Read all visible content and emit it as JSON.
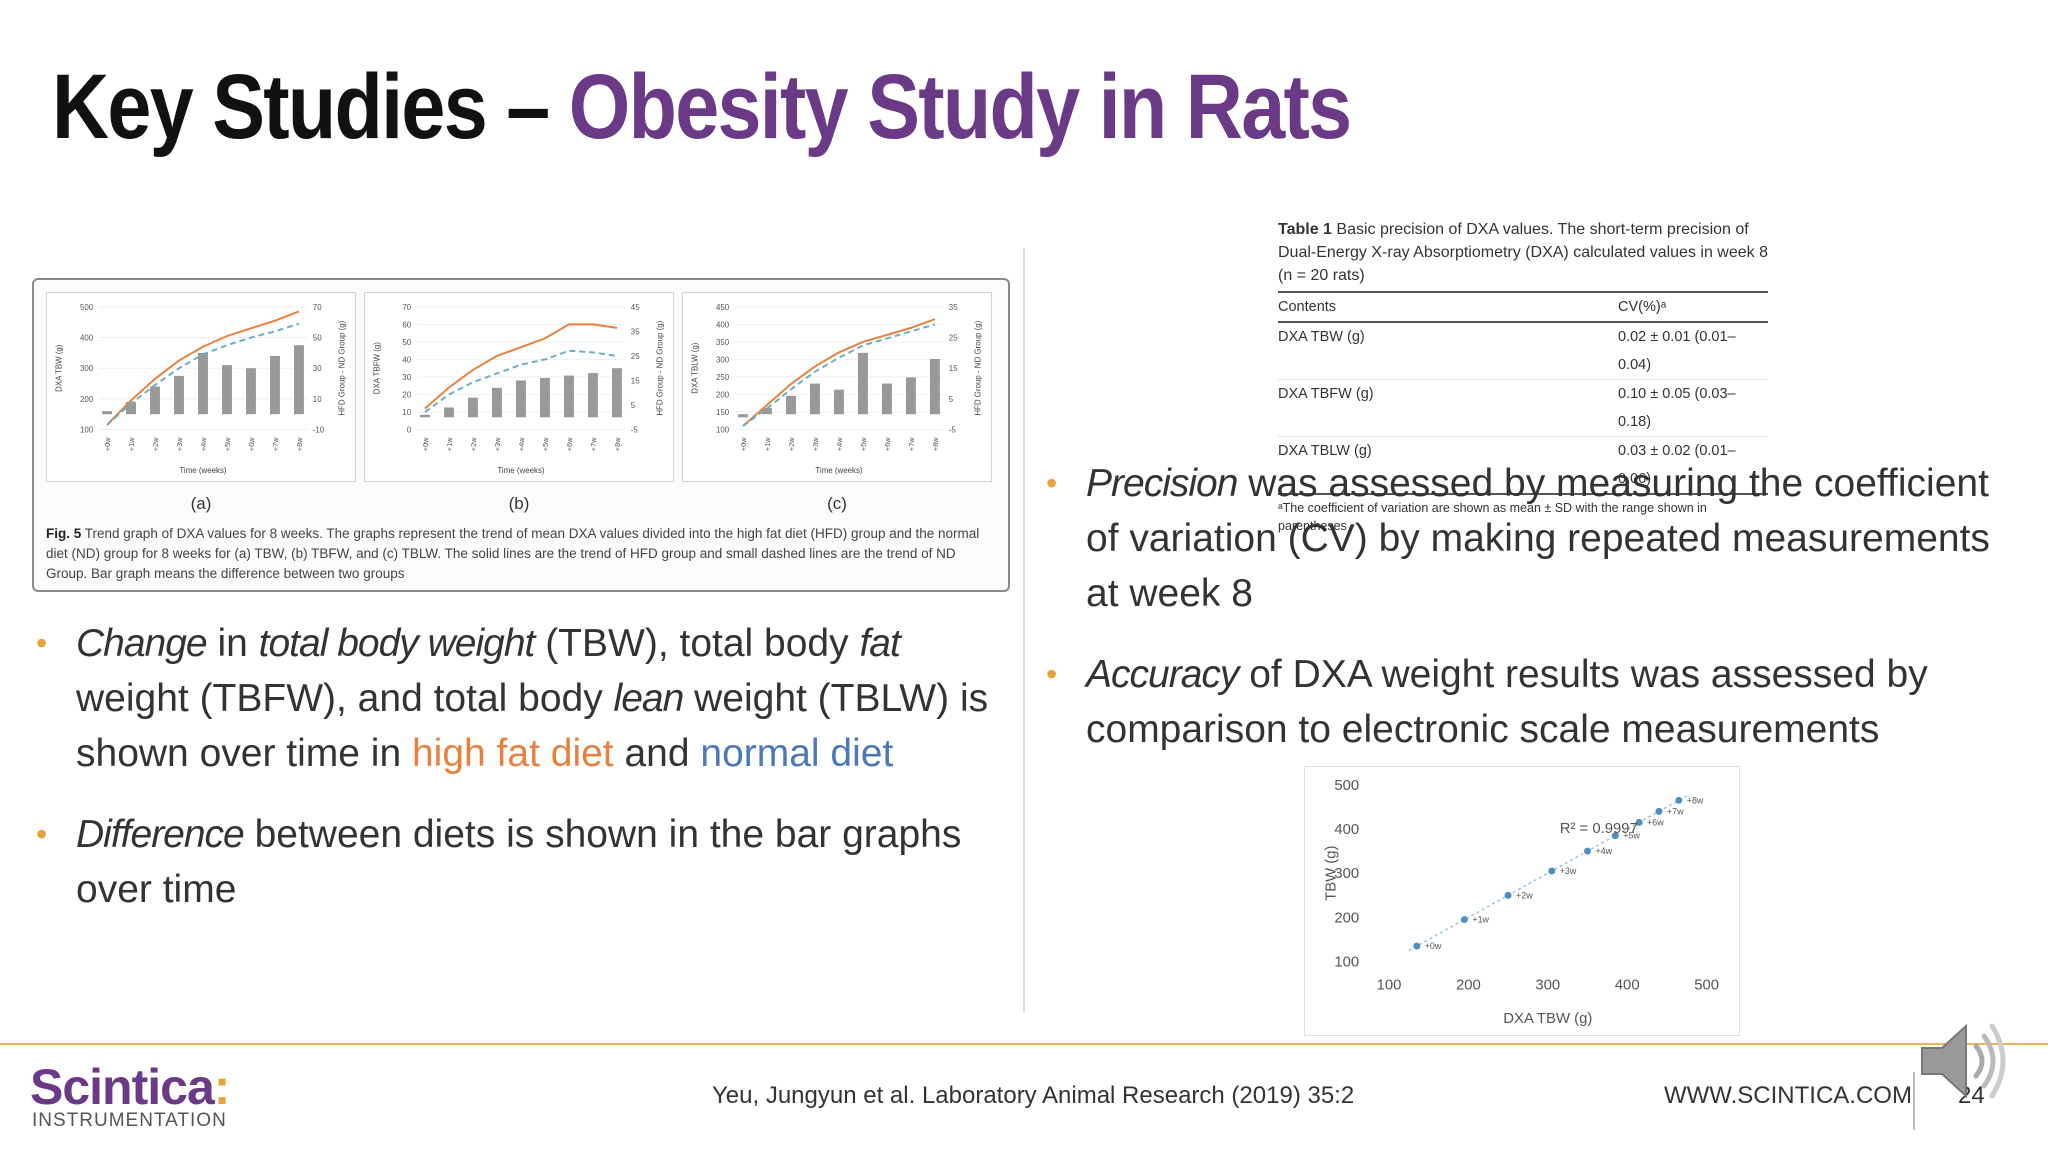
{
  "title": {
    "part1": "Key Studies – ",
    "part2": "Obesity Study in Rats"
  },
  "figure": {
    "graphs": [
      {
        "letter": "(a)",
        "y_left_label": "DXA TBW (g)",
        "y_right_label": "HFD Group - ND Group (g)",
        "y_left_ticks": [
          "500",
          "400",
          "300",
          "200",
          "100"
        ],
        "y_right_ticks": [
          "70",
          "50",
          "30",
          "10",
          "-10"
        ],
        "x_label": "Time (weeks)"
      },
      {
        "letter": "(b)",
        "y_left_label": "DXA TBFW (g)",
        "y_right_label": "HFD Group - ND Group (g)",
        "y_left_ticks": [
          "70",
          "60",
          "50",
          "40",
          "30",
          "20",
          "10",
          "0"
        ],
        "y_right_ticks": [
          "45",
          "35",
          "25",
          "15",
          "5",
          "-5"
        ],
        "x_label": "Time (weeks)"
      },
      {
        "letter": "(c)",
        "y_left_label": "DXA TBLW (g)",
        "y_right_label": "HFD Group - ND Group (g)",
        "y_left_ticks": [
          "450",
          "400",
          "350",
          "300",
          "250",
          "200",
          "150",
          "100"
        ],
        "y_right_ticks": [
          "35",
          "25",
          "15",
          "5",
          "-5"
        ],
        "x_label": "Time (weeks)"
      }
    ],
    "x_ticks": [
      "+0w",
      "+1w",
      "+2w",
      "+3w",
      "+4w",
      "+5w",
      "+6w",
      "+7w",
      "+8w"
    ],
    "caption": {
      "fig_label": "Fig. 5",
      "text": "Trend graph of DXA values for 8 weeks. The graphs represent the trend of mean DXA values divided into the high fat diet (HFD) group and the normal diet (ND) group for 8 weeks for (a) TBW, (b) TBFW, and (c) TBLW. The solid lines are the trend of HFD group and small dashed lines are the trend of ND Group. Bar graph means the difference between two groups"
    }
  },
  "chart_data": [
    {
      "type": "line",
      "title": "(a)",
      "x": [
        "+0w",
        "+1w",
        "+2w",
        "+3w",
        "+4w",
        "+5w",
        "+6w",
        "+7w",
        "+8w"
      ],
      "ylabel": "DXA TBW (g)",
      "ylim": [
        100,
        500
      ],
      "y2label": "HFD Group - ND Group (g)",
      "y2lim": [
        -10,
        70
      ],
      "series": [
        {
          "values": [
            115,
            195,
            265,
            325,
            370,
            405,
            430,
            455,
            485
          ],
          "style": "solid",
          "color": "#e8813f"
        },
        {
          "values": [
            115,
            185,
            245,
            300,
            345,
            375,
            400,
            420,
            445
          ],
          "style": "dashed",
          "color": "#6aaec4"
        },
        {
          "values": [
            2,
            8,
            18,
            25,
            40,
            32,
            30,
            38,
            45
          ],
          "style": "bar",
          "color": "#999999",
          "axis": "right"
        }
      ]
    },
    {
      "type": "line",
      "title": "(b)",
      "x": [
        "+0w",
        "+1w",
        "+2w",
        "+3w",
        "+4w",
        "+5w",
        "+6w",
        "+7w",
        "+8w"
      ],
      "ylabel": "DXA TBFW (g)",
      "ylim": [
        0,
        70
      ],
      "y2label": "HFD Group - ND Group (g)",
      "y2lim": [
        -5,
        45
      ],
      "series": [
        {
          "values": [
            12,
            24,
            34,
            42,
            47,
            52,
            60,
            60,
            58
          ],
          "style": "solid",
          "color": "#e8813f"
        },
        {
          "values": [
            10,
            20,
            27,
            32,
            37,
            40,
            45,
            44,
            42
          ],
          "style": "dashed",
          "color": "#6aaec4"
        },
        {
          "values": [
            1,
            4,
            8,
            12,
            15,
            16,
            17,
            18,
            20
          ],
          "style": "bar",
          "color": "#999999",
          "axis": "right"
        }
      ]
    },
    {
      "type": "line",
      "title": "(c)",
      "x": [
        "+0w",
        "+1w",
        "+2w",
        "+3w",
        "+4w",
        "+5w",
        "+6w",
        "+7w",
        "+8w"
      ],
      "ylabel": "DXA TBLW (g)",
      "ylim": [
        100,
        450
      ],
      "y2label": "HFD Group - ND Group (g)",
      "y2lim": [
        -5,
        35
      ],
      "series": [
        {
          "values": [
            110,
            170,
            230,
            280,
            320,
            350,
            370,
            390,
            415
          ],
          "style": "solid",
          "color": "#e8813f"
        },
        {
          "values": [
            110,
            160,
            215,
            265,
            305,
            340,
            360,
            380,
            400
          ],
          "style": "dashed",
          "color": "#6aaec4"
        },
        {
          "values": [
            -1,
            2,
            6,
            10,
            8,
            20,
            10,
            12,
            18
          ],
          "style": "bar",
          "color": "#999999",
          "axis": "right"
        }
      ]
    },
    {
      "type": "scatter",
      "xlabel": "DXA TBW (g)",
      "ylabel": "TBW (g)",
      "xlim": [
        100,
        500
      ],
      "ylim": [
        100,
        500
      ],
      "x_ticks": [
        "100",
        "200",
        "300",
        "400",
        "500"
      ],
      "y_ticks": [
        "500",
        "400",
        "300",
        "200",
        "100"
      ],
      "annotation": "R² = 0.9997",
      "points": [
        {
          "label": "+0w",
          "x": 135,
          "y": 135
        },
        {
          "label": "+1w",
          "x": 195,
          "y": 195
        },
        {
          "label": "+2w",
          "x": 250,
          "y": 250
        },
        {
          "label": "+3w",
          "x": 305,
          "y": 305
        },
        {
          "label": "+4w",
          "x": 350,
          "y": 350
        },
        {
          "label": "+5w",
          "x": 385,
          "y": 385
        },
        {
          "label": "+6w",
          "x": 415,
          "y": 415
        },
        {
          "label": "+7w",
          "x": 440,
          "y": 440
        },
        {
          "label": "+8w",
          "x": 465,
          "y": 465
        }
      ]
    }
  ],
  "left_bullets": {
    "b1": {
      "w1": "Change",
      "w2": " in ",
      "w3": "total body weight",
      "w4": " (TBW), total body ",
      "w5": "fat",
      "w6": " weight (TBFW), and total body ",
      "w7": "lean",
      "w8": " weight (TBLW) is shown over time in ",
      "w9": "high fat diet",
      "w10": " and ",
      "w11": "normal diet"
    },
    "b2": {
      "w1": "Difference",
      "w2": " between diets is shown in the bar graphs over time"
    }
  },
  "right_bullets": {
    "b1": {
      "w1": "Precision",
      "w2": " was assessed by measuring the coefficient of variation (CV) by making repeated measurements at week 8"
    },
    "b2": {
      "w1": "Accuracy",
      "w2": " of DXA weight results was assessed by comparison to electronic scale measurements"
    }
  },
  "table": {
    "label": "Table 1",
    "caption": "Basic precision of DXA values. The short-term precision of Dual-Energy X-ray Absorptiometry (DXA) calculated values in week 8 (n = 20 rats)",
    "headers": [
      "Contents",
      "CV(%)ᵃ"
    ],
    "rows": [
      [
        "DXA TBW (g)",
        "0.02 ± 0.01 (0.01–0.04)"
      ],
      [
        "DXA TBFW (g)",
        "0.10 ± 0.05 (0.03–0.18)"
      ],
      [
        "DXA TBLW (g)",
        "0.03 ± 0.02 (0.01–0.06)"
      ]
    ],
    "footnote": "ᵃThe coefficient of variation are shown as mean ± SD with the range shown in parentheses"
  },
  "footer": {
    "logo_name": "Scintica",
    "logo_sub": "INSTRUMENTATION",
    "citation": "Yeu, Jungyun et al. Laboratory Animal Research (2019) 35:2",
    "website": "WWW.SCINTICA.COM",
    "page_number": "24"
  },
  "colors": {
    "accent": "#6b3a87",
    "bullet": "#e8a33c",
    "hfd": "#e8813f",
    "nd": "#4a78b8"
  },
  "icons": {
    "audio": "speaker-icon"
  }
}
